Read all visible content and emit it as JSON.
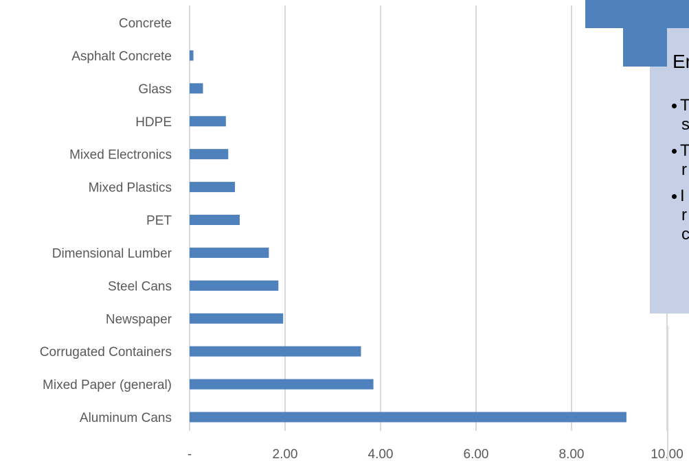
{
  "chart_data": {
    "type": "bar",
    "orientation": "horizontal",
    "categories": [
      "Concrete",
      "Asphalt Concrete",
      "Glass",
      "HDPE",
      "Mixed Electronics",
      "Mixed Plastics",
      "PET",
      "Dimensional Lumber",
      "Steel Cans",
      "Newspaper",
      "Corrugated Containers",
      "Mixed Paper (general)",
      "Aluminum Cans"
    ],
    "values": [
      0,
      0.08,
      0.28,
      0.76,
      0.81,
      0.95,
      1.05,
      1.66,
      1.86,
      1.96,
      3.59,
      3.85,
      9.15
    ],
    "x_ticks": [
      "-",
      "2.00",
      "4.00",
      "6.00",
      "8.00",
      "10.00"
    ],
    "xlim": [
      0,
      10
    ],
    "grid": true,
    "bar_color": "#4f81bd",
    "grid_color": "#d9d9d9"
  },
  "overlay": {
    "heading_fragment": "Er",
    "bullet_fragments": [
      [
        "T",
        "s"
      ],
      [
        "T",
        "r"
      ],
      [
        "I",
        "r",
        "c"
      ]
    ],
    "accent_color": "#4f81bd",
    "panel_color": "#c5cfe5"
  }
}
